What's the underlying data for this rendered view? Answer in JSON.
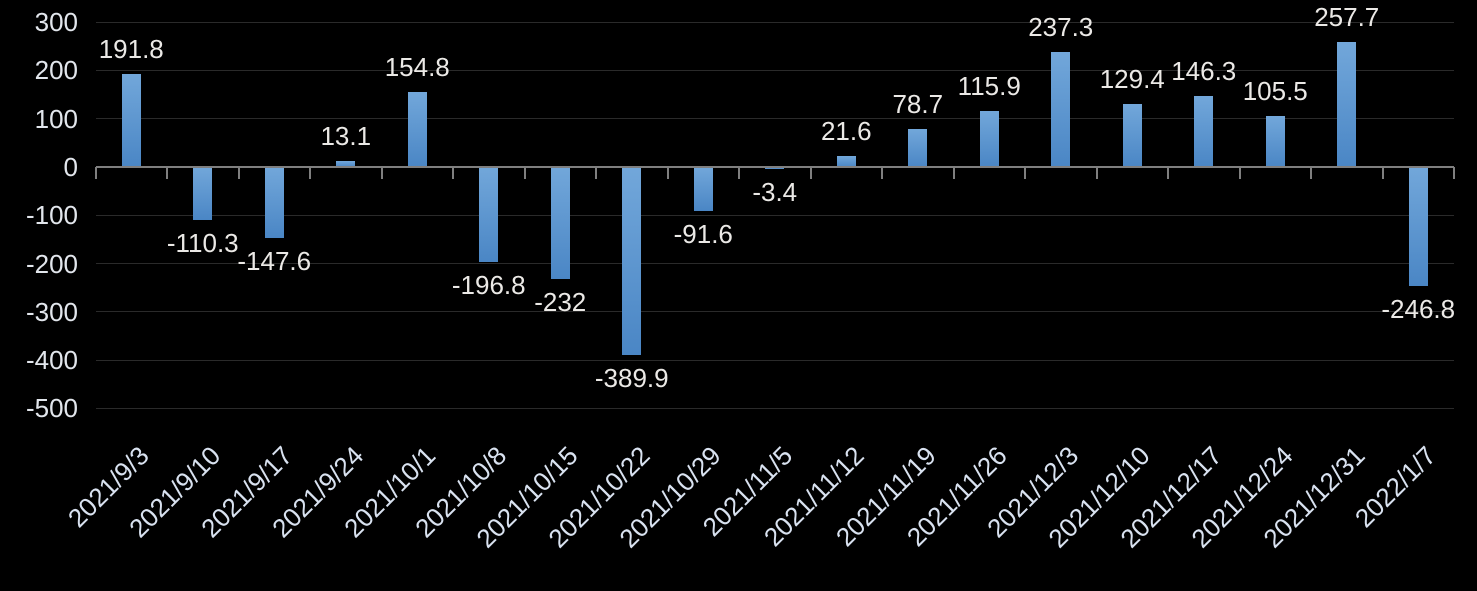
{
  "chart_data": {
    "type": "bar",
    "title": "",
    "xlabel": "",
    "ylabel": "",
    "categories": [
      "2021/9/3",
      "2021/9/10",
      "2021/9/17",
      "2021/9/24",
      "2021/10/1",
      "2021/10/8",
      "2021/10/15",
      "2021/10/22",
      "2021/10/29",
      "2021/11/5",
      "2021/11/12",
      "2021/11/19",
      "2021/11/26",
      "2021/12/3",
      "2021/12/10",
      "2021/12/17",
      "2021/12/24",
      "2021/12/31",
      "2022/1/7"
    ],
    "values": [
      191.8,
      -110.3,
      -147.6,
      13.1,
      154.8,
      -196.8,
      -232,
      -389.9,
      -91.6,
      -3.4,
      21.6,
      78.7,
      115.9,
      237.3,
      129.4,
      146.3,
      105.5,
      257.7,
      -246.8
    ],
    "value_labels": [
      "191.8",
      "-110.3",
      "-147.6",
      "13.1",
      "154.8",
      "-196.8",
      "-232",
      "-389.9",
      "-91.6",
      "-3.4",
      "21.6",
      "78.7",
      "115.9",
      "237.3",
      "129.4",
      "146.3",
      "105.5",
      "257.7",
      "-246.8"
    ],
    "yticks": [
      300,
      200,
      100,
      0,
      -100,
      -200,
      -300,
      -400,
      -500
    ],
    "ylim": [
      -500,
      300
    ],
    "grid": true,
    "legend": false,
    "data_labels": "outside-end",
    "x_label_rotation_deg": -45,
    "colors": {
      "background": "#000000",
      "bar_gradient_top": "#72a7da",
      "bar_gradient_bottom": "#4a86c5",
      "gridline": "#2a2a2a",
      "axis_line": "#7f7f7f",
      "tick_mark": "#7f7f7f",
      "data_label_text": "#ebe9e6",
      "y_axis_text": "#e2e6ec",
      "x_axis_text": "#d9e2f0"
    }
  }
}
